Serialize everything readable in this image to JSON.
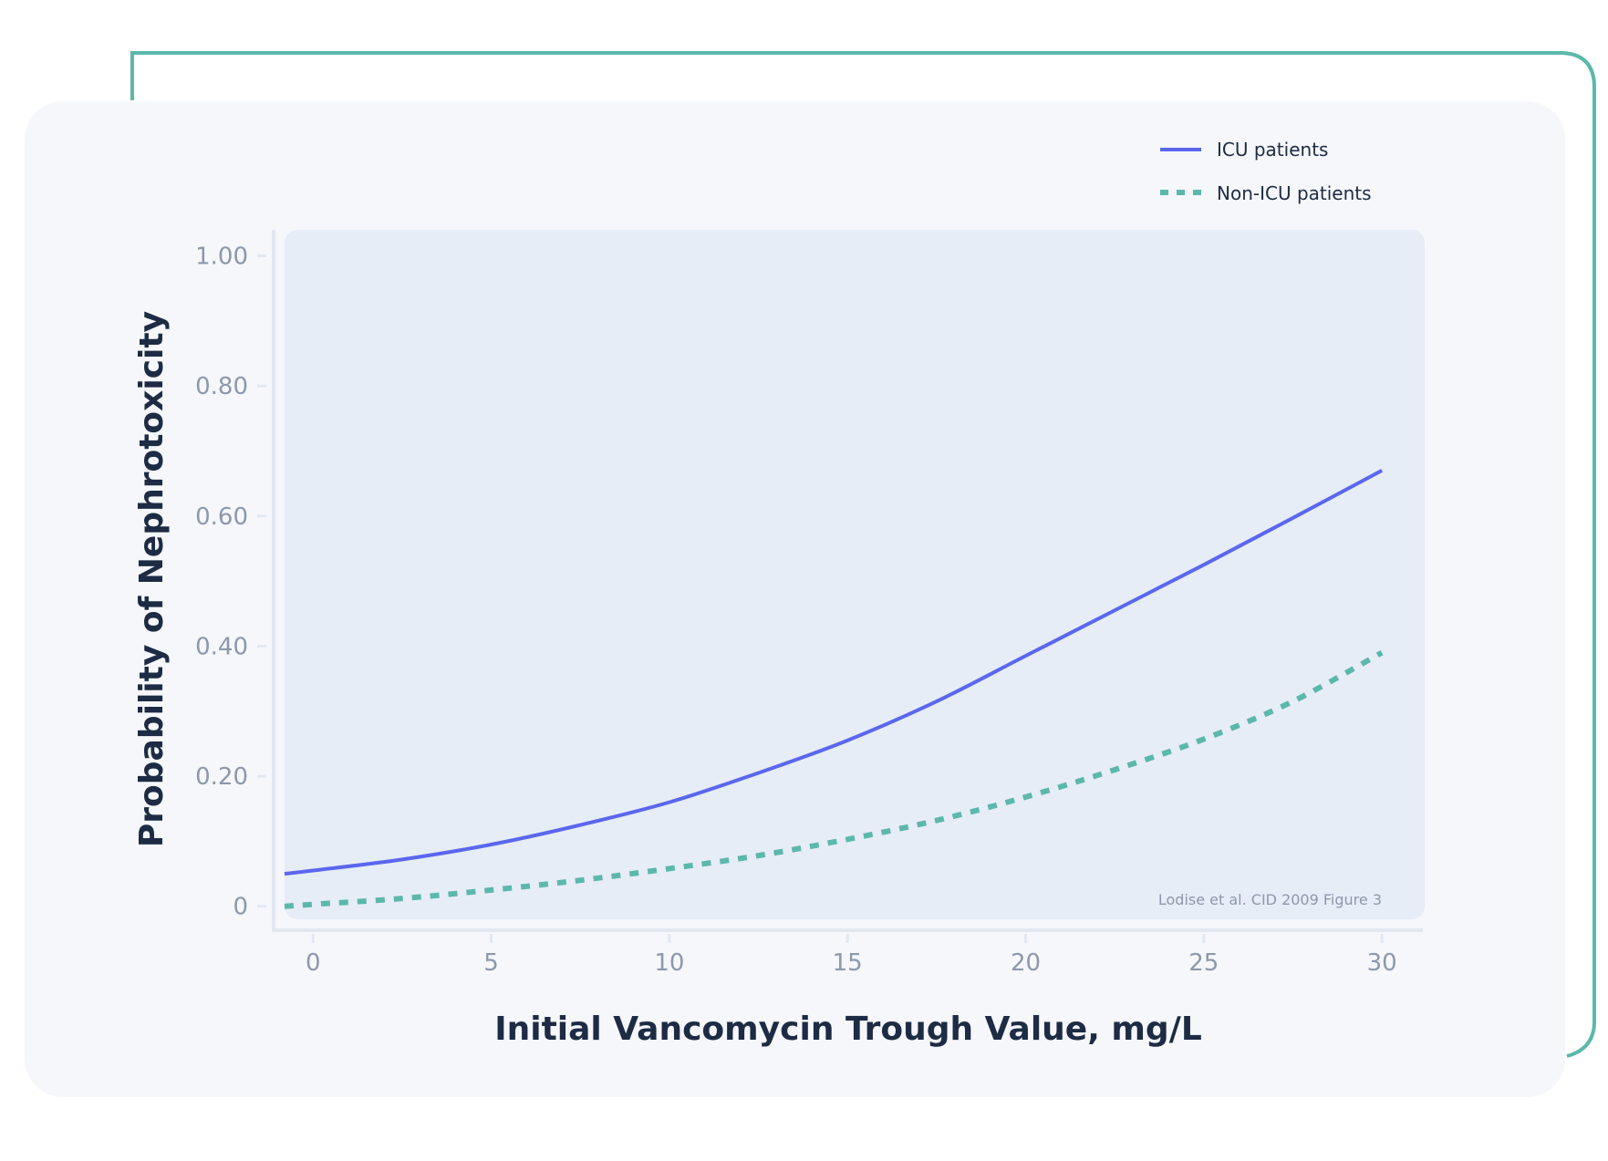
{
  "colors": {
    "frame": "#5bb8aa",
    "card": "#f5f7fb",
    "plot_area": "#e7edf7",
    "axis": "#e2e8f2",
    "icu": "#5a67ee",
    "non_icu": "#5bb8aa",
    "text_dark": "#1d2b44",
    "text_muted": "#8c98ab"
  },
  "chart_data": {
    "type": "line",
    "xlabel": "Initial Vancomycin Trough Value, mg/L",
    "ylabel": "Probability of Nephrotoxicity",
    "xlim": [
      -0.8,
      31.2
    ],
    "ylim": [
      -0.02,
      1.04
    ],
    "x_ticks": [
      0,
      5,
      10,
      15,
      20,
      25,
      30
    ],
    "x_tick_labels": [
      "0",
      "5",
      "10",
      "15",
      "20",
      "25",
      "30"
    ],
    "y_ticks": [
      0,
      0.2,
      0.4,
      0.6,
      0.8,
      1.0
    ],
    "y_tick_labels": [
      "0",
      "0.20",
      "0.40",
      "0.60",
      "0.80",
      "1.00"
    ],
    "grid": false,
    "legend_position": "top-right",
    "annotation": "Lodise et al. CID 2009 Figure 3",
    "series": [
      {
        "name": "ICU patients",
        "style": "solid",
        "x": [
          -0.8,
          0,
          2.5,
          5,
          7.5,
          10,
          12.5,
          15,
          17.5,
          20,
          22.5,
          25,
          27.5,
          30
        ],
        "y": [
          0.05,
          0.055,
          0.072,
          0.095,
          0.125,
          0.16,
          0.205,
          0.255,
          0.315,
          0.385,
          0.455,
          0.525,
          0.597,
          0.67
        ]
      },
      {
        "name": "Non-ICU patients",
        "style": "dotted",
        "x": [
          -0.8,
          0,
          2.5,
          5,
          7.5,
          10,
          12.5,
          15,
          17.5,
          20,
          22.5,
          25,
          27.5,
          30
        ],
        "y": [
          0.0,
          0.003,
          0.012,
          0.025,
          0.04,
          0.058,
          0.078,
          0.103,
          0.132,
          0.168,
          0.21,
          0.257,
          0.315,
          0.39
        ]
      }
    ]
  }
}
